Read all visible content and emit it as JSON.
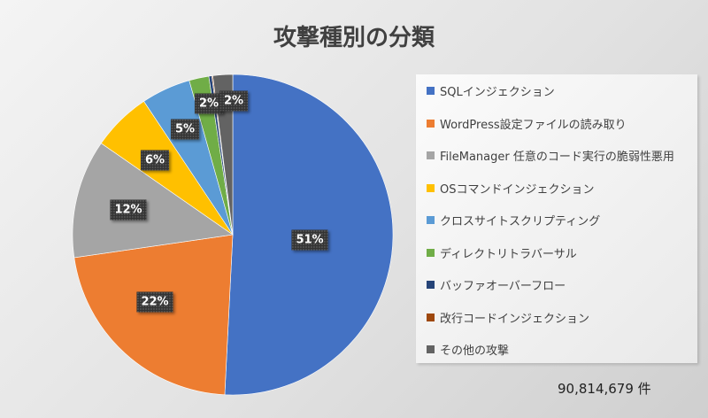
{
  "chart_data": {
    "type": "pie",
    "title": "攻撃種別の分類",
    "categories": [
      "SQLインジェクション",
      "WordPress設定ファイルの読み取り",
      "FileManager 任意のコード実行の脆弱性悪用",
      "OSコマンドインジェクション",
      "クロスサイトスクリプティング",
      "ディレクトリトラバーサル",
      "バッファオーバーフロー",
      "改行コードインジェクション",
      "その他の攻撃"
    ],
    "values": [
      51,
      22,
      12,
      6,
      5,
      2,
      0.3,
      0.1,
      2
    ],
    "data_labels": [
      "51%",
      "22%",
      "12%",
      "6%",
      "5%",
      "2%",
      "",
      "",
      "2%"
    ],
    "colors": [
      "#4472c4",
      "#ed7d31",
      "#a5a5a5",
      "#ffc000",
      "#5b9bd5",
      "#70ad47",
      "#264478",
      "#9e480e",
      "#636363"
    ],
    "legend_position": "right",
    "start": "top, clockwise"
  },
  "total_label": "90,814,679 件"
}
